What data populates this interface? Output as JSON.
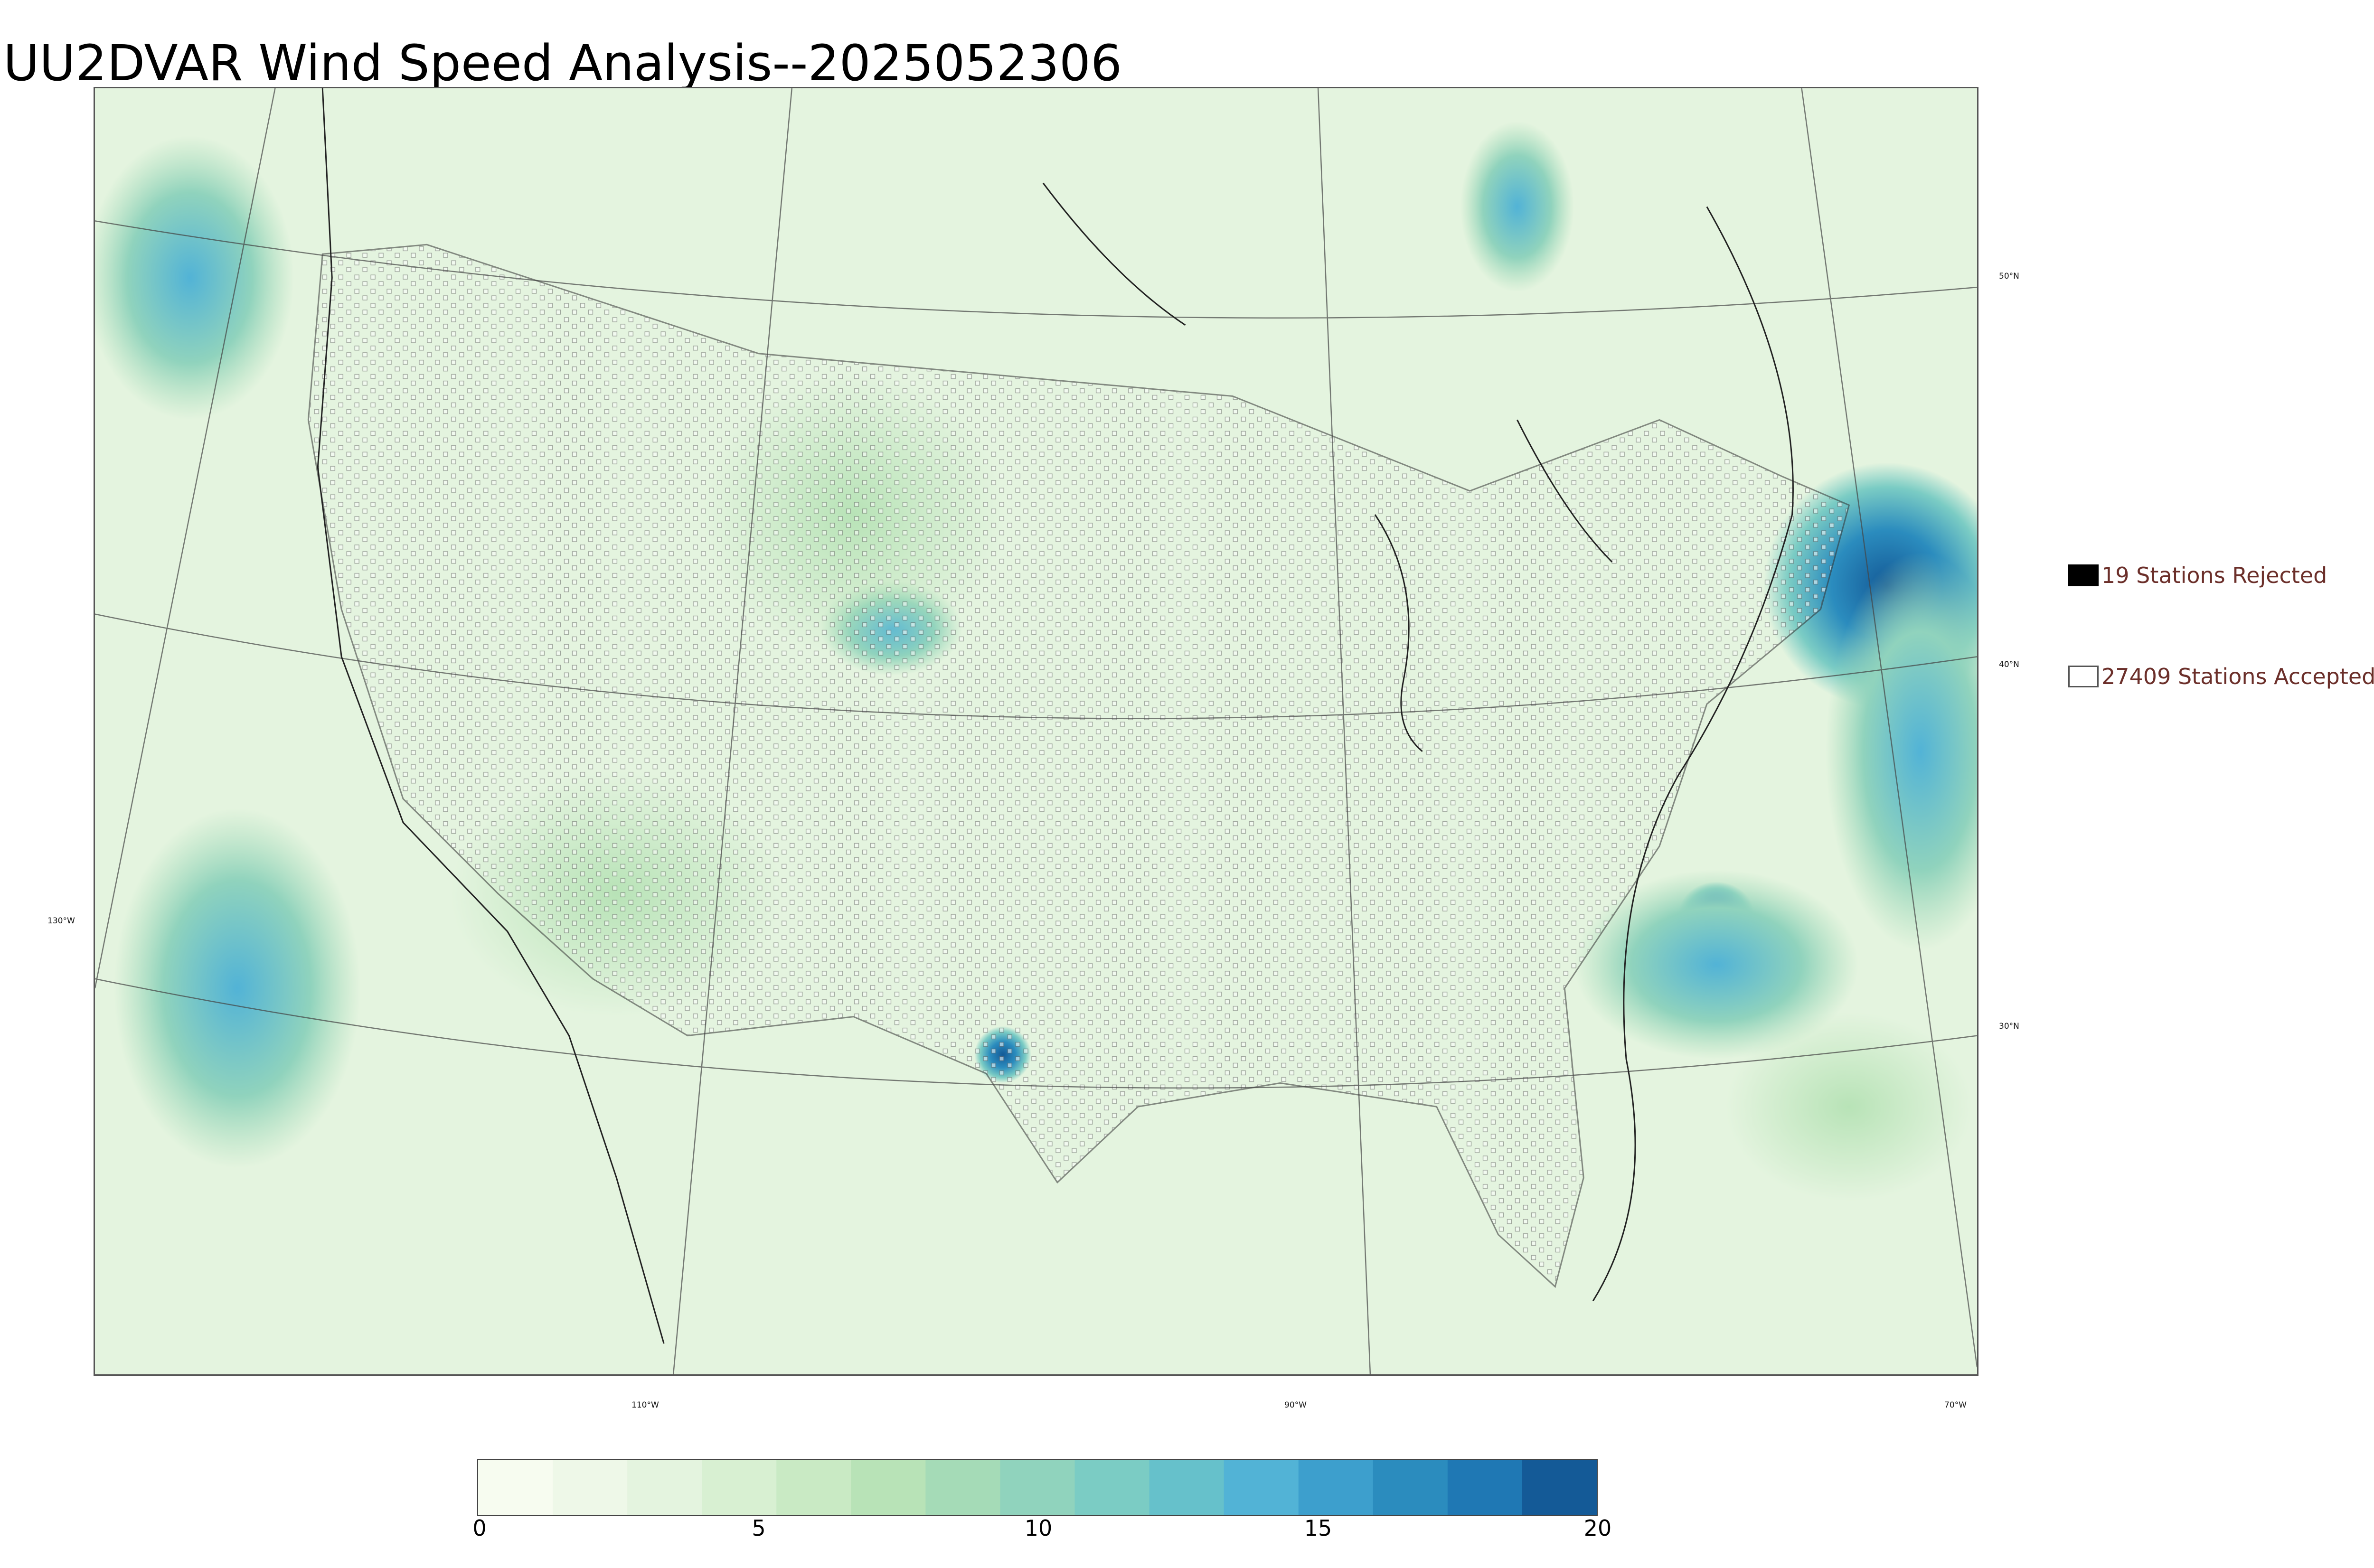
{
  "title": "UU2DVAR Wind Speed Analysis--2025052306",
  "map": {
    "latitude_labels": [
      "50°N",
      "40°N",
      "30°N"
    ],
    "longitude_labels": [
      "130°W",
      "110°W",
      "90°W",
      "70°W"
    ]
  },
  "legend": {
    "rejected": "19 Stations Rejected",
    "accepted": "27409 Stations Accepted"
  },
  "colorbar": {
    "ticks": [
      "0",
      "5",
      "10",
      "15",
      "20"
    ],
    "colors": [
      "#f7fcf0",
      "#eef8e8",
      "#e4f4df",
      "#d8f0d2",
      "#c9eac4",
      "#b8e3b7",
      "#a5dbb7",
      "#90d3bd",
      "#7bccc4",
      "#66c1cb",
      "#52b3d6",
      "#3d9fcd",
      "#2b8cbe",
      "#1f78b4",
      "#145a97"
    ]
  },
  "chart_data": {
    "type": "heatmap",
    "title": "UU2DVAR Wind Speed Analysis--2025052306",
    "colorbar_range": [
      0,
      20
    ],
    "colorbar_ticks": [
      0,
      5,
      10,
      15,
      20
    ],
    "stations_rejected": 19,
    "stations_accepted": 27409,
    "latitude_lines": [
      "50°N",
      "40°N",
      "30°N"
    ],
    "longitude_lines": [
      "130°W",
      "110°W",
      "90°W",
      "70°W"
    ]
  }
}
